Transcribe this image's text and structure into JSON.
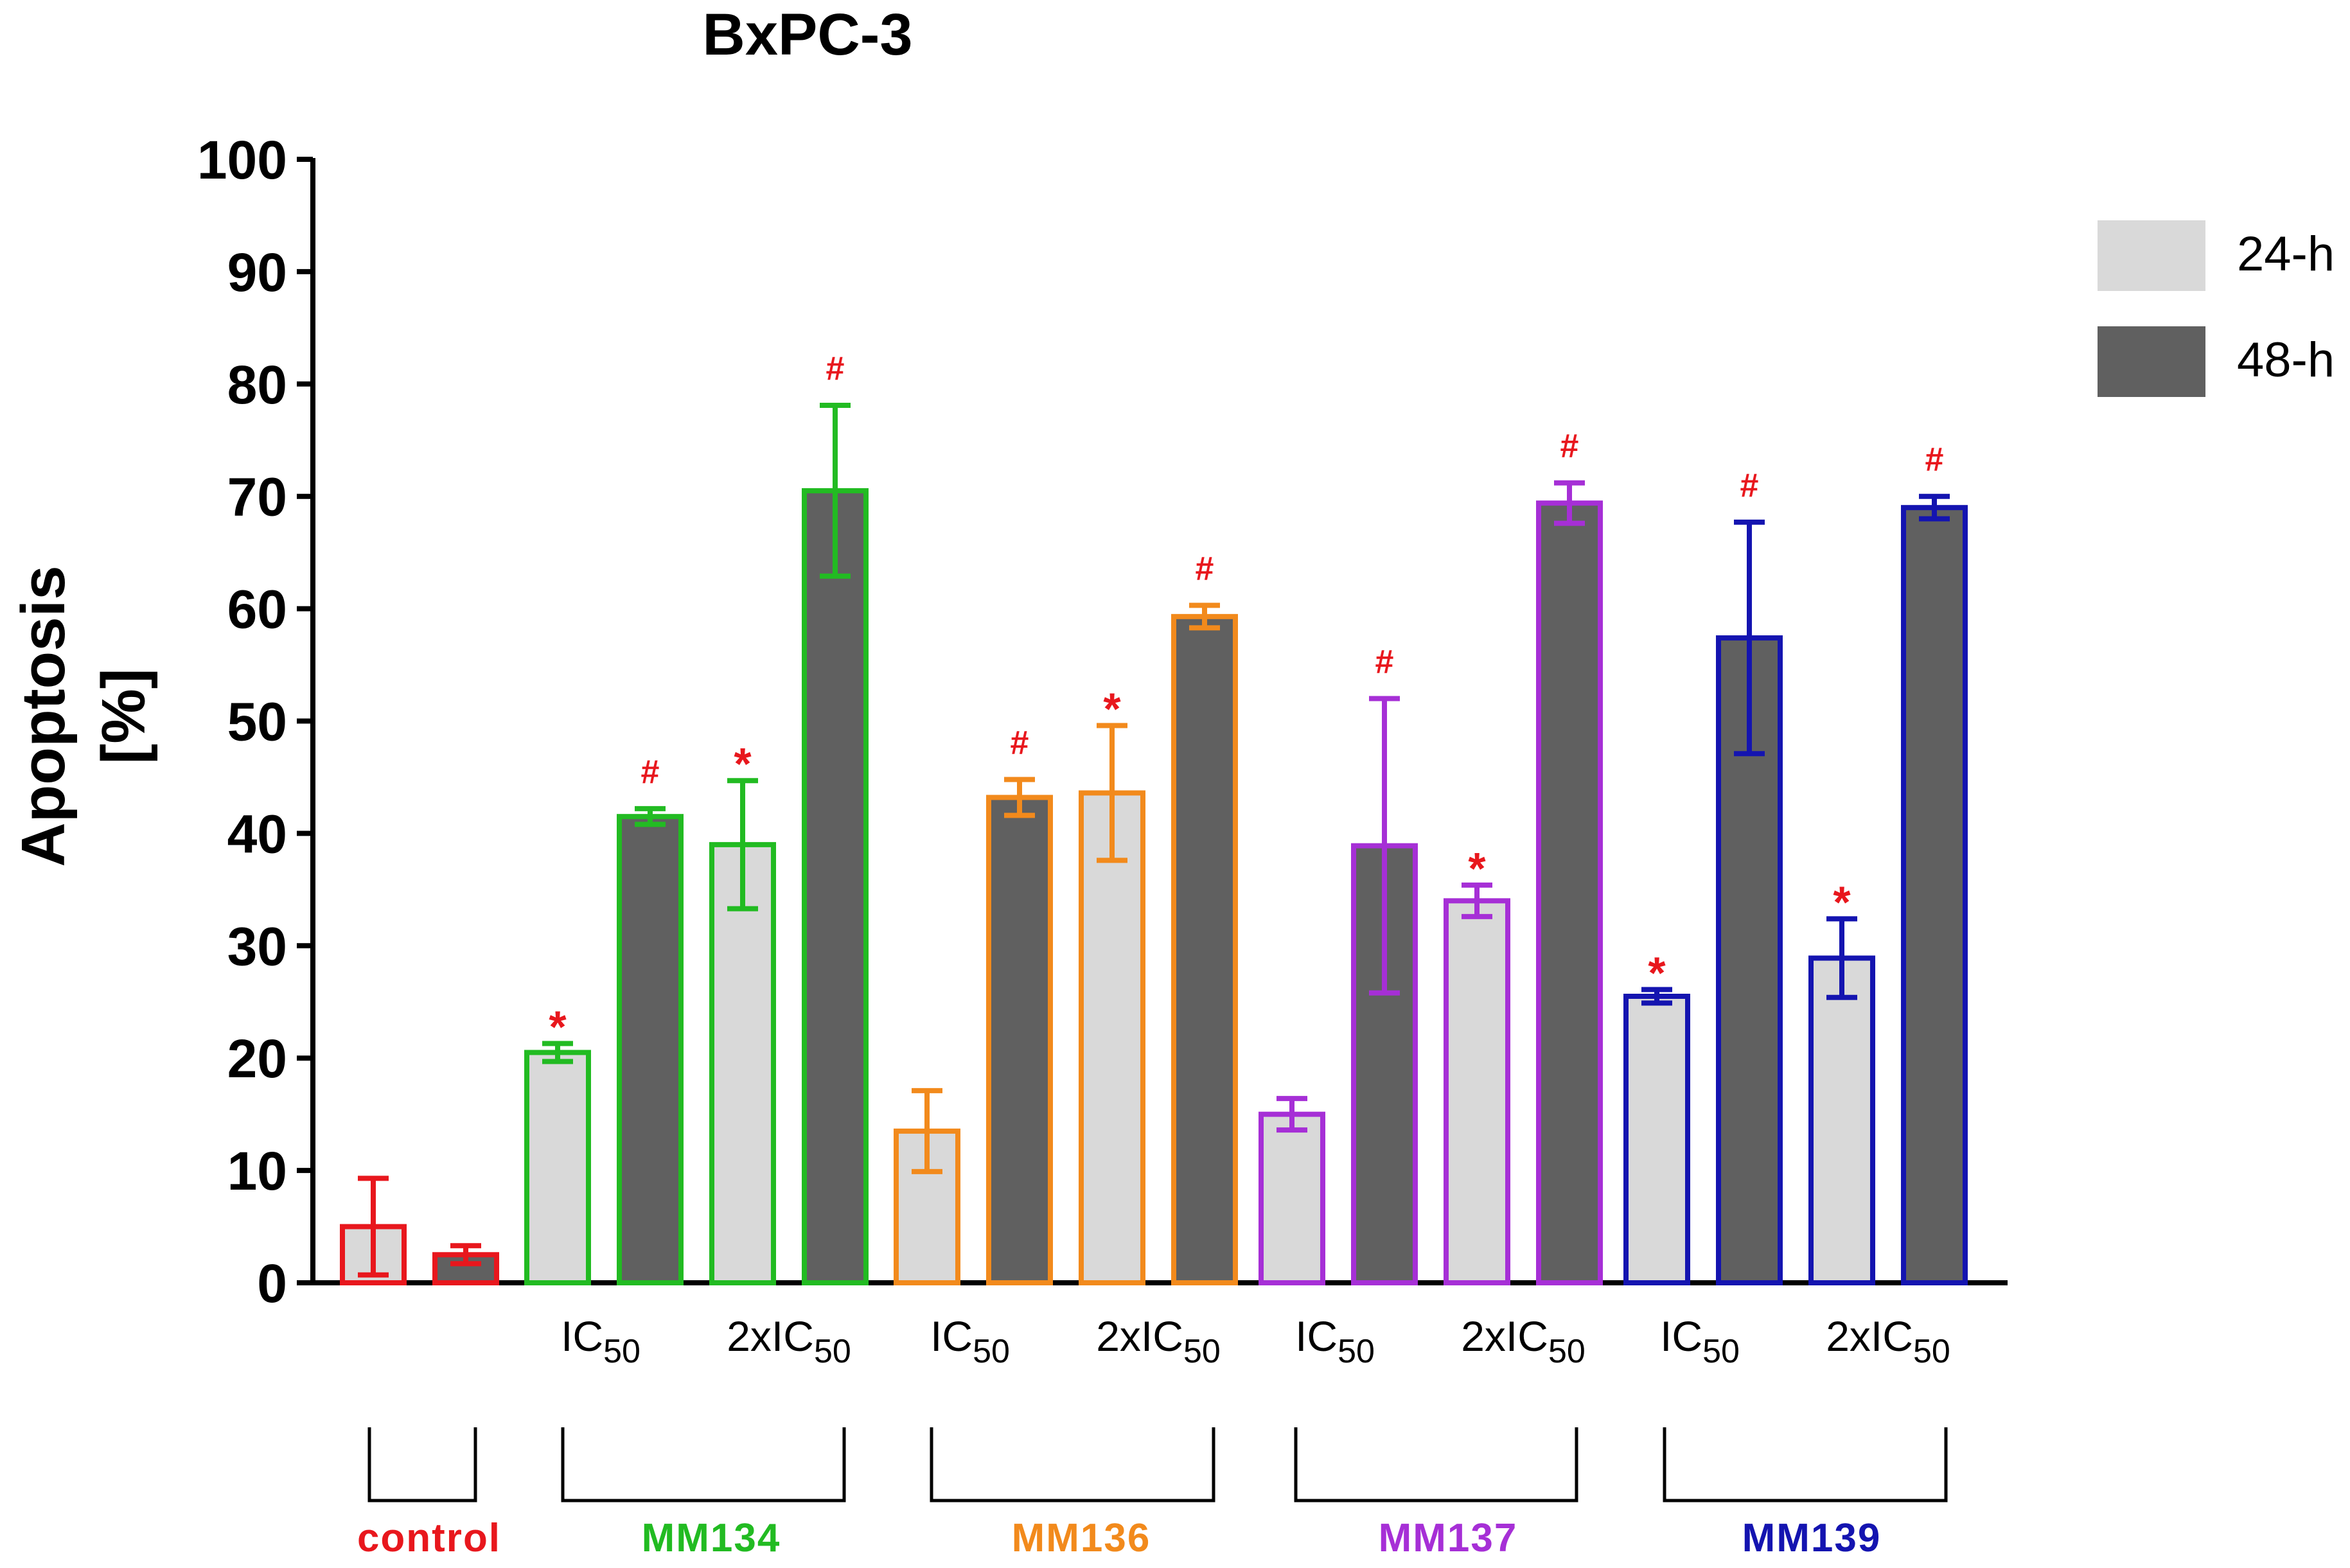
{
  "chart_data": {
    "type": "bar",
    "title": "BxPC-3",
    "ylabel_line1": "Apoptosis",
    "ylabel_line2": "[%]",
    "ylim": [
      0,
      100
    ],
    "yticks": [
      0,
      10,
      20,
      30,
      40,
      50,
      60,
      70,
      80,
      90,
      100
    ],
    "legend": [
      {
        "name": "24-h",
        "color": "#d9d9d9"
      },
      {
        "name": "48-h",
        "color": "#606060"
      }
    ],
    "groups": [
      {
        "name": "control",
        "color": "#e8171d",
        "conc_labels": [
          "",
          ""
        ],
        "bars": [
          {
            "series": "24-h",
            "value": 5.0,
            "error": 4.3,
            "mark": ""
          },
          {
            "series": "48-h",
            "value": 2.5,
            "error": 0.8,
            "mark": ""
          }
        ]
      },
      {
        "name": "MM134",
        "color": "#22bb22",
        "conc_labels": [
          "IC",
          "2xIC"
        ],
        "bars": [
          {
            "series": "24-h",
            "value": 20.5,
            "error": 0.8,
            "mark": "*"
          },
          {
            "series": "48-h",
            "value": 41.5,
            "error": 0.7,
            "mark": "#"
          },
          {
            "series": "24-h",
            "value": 39.0,
            "error": 5.7,
            "mark": "*"
          },
          {
            "series": "48-h",
            "value": 70.5,
            "error": 7.6,
            "mark": "#"
          }
        ]
      },
      {
        "name": "MM136",
        "color": "#f28a1c",
        "conc_labels": [
          "IC",
          "2xIC"
        ],
        "bars": [
          {
            "series": "24-h",
            "value": 13.5,
            "error": 3.6,
            "mark": ""
          },
          {
            "series": "48-h",
            "value": 43.2,
            "error": 1.6,
            "mark": "#"
          },
          {
            "series": "24-h",
            "value": 43.6,
            "error": 6.0,
            "mark": "*"
          },
          {
            "series": "48-h",
            "value": 59.3,
            "error": 1.0,
            "mark": "#"
          }
        ]
      },
      {
        "name": "MM137",
        "color": "#a62fd6",
        "conc_labels": [
          "IC",
          "2xIC"
        ],
        "bars": [
          {
            "series": "24-h",
            "value": 15.0,
            "error": 1.4,
            "mark": ""
          },
          {
            "series": "48-h",
            "value": 38.9,
            "error": 13.1,
            "mark": "#"
          },
          {
            "series": "24-h",
            "value": 34.0,
            "error": 1.4,
            "mark": "*"
          },
          {
            "series": "48-h",
            "value": 69.4,
            "error": 1.8,
            "mark": "#"
          }
        ]
      },
      {
        "name": "MM139",
        "color": "#1414b0",
        "conc_labels": [
          "IC",
          "2xIC"
        ],
        "bars": [
          {
            "series": "24-h",
            "value": 25.5,
            "error": 0.6,
            "mark": "*"
          },
          {
            "series": "48-h",
            "value": 57.4,
            "error": 10.3,
            "mark": "#"
          },
          {
            "series": "24-h",
            "value": 28.9,
            "error": 3.5,
            "mark": "*"
          },
          {
            "series": "48-h",
            "value": 69.0,
            "error": 1.0,
            "mark": "#"
          }
        ]
      }
    ],
    "subscript": "50",
    "mark_color": "#e8171d"
  }
}
